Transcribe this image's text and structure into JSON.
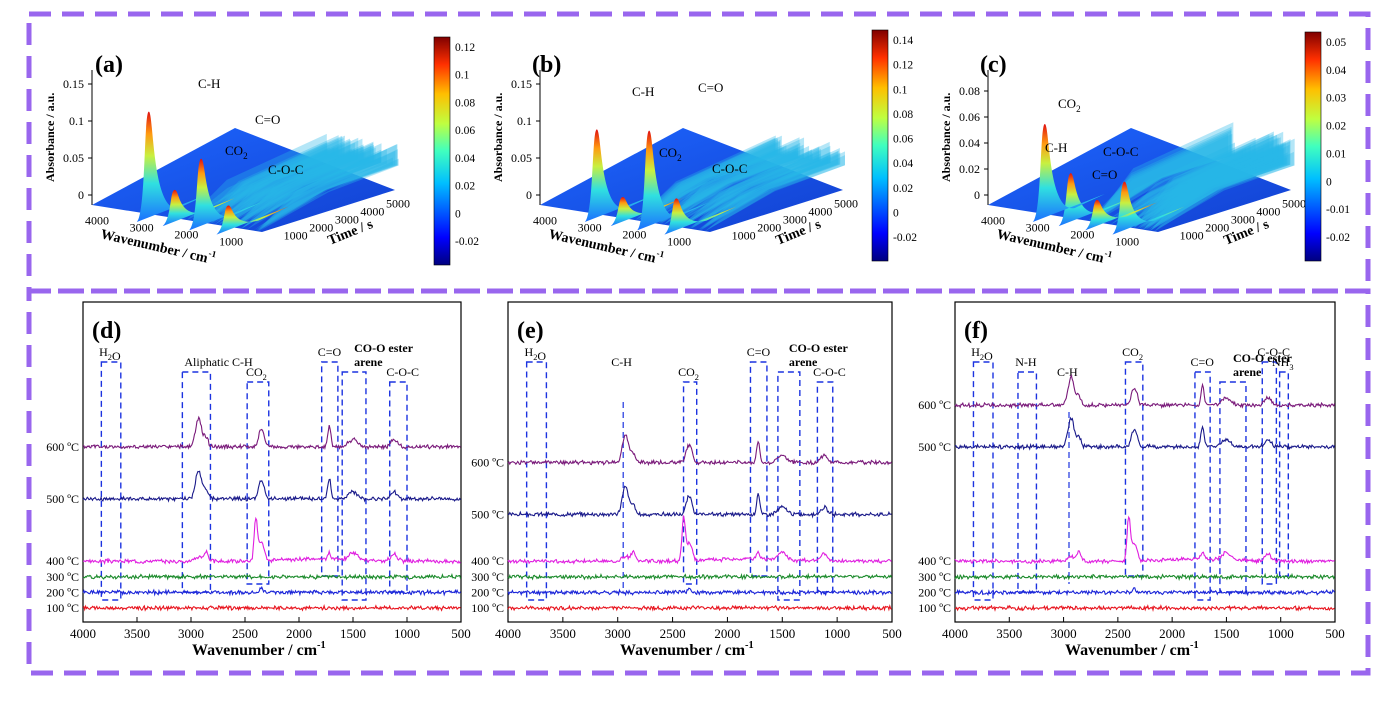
{
  "figure": {
    "frame_color": "#9966ee"
  },
  "chart_data": [
    {
      "panel": "(a)",
      "type": "surface3d",
      "xlabel": "Wavenumber / cm⁻¹",
      "ylabel": "Time / s",
      "zlabel": "Absorbance / a.u.",
      "x_ticks": [
        "4000",
        "3000",
        "2000",
        "1000"
      ],
      "t_ticks": [
        "1000",
        "2000",
        "3000",
        "4000",
        "5000"
      ],
      "z_ticks": [
        "0",
        "0.05",
        "0.1",
        "0.15"
      ],
      "colorbar_ticks": [
        "-0.02",
        "0",
        "0.02",
        "0.04",
        "0.06",
        "0.08",
        "0.1",
        "0.12"
      ],
      "peaks": [
        {
          "label": "C-H",
          "wavenumber": 2930,
          "height": 0.145
        },
        {
          "label": "CO₂",
          "wavenumber": 2350,
          "height": 0.04
        },
        {
          "label": "C=O",
          "wavenumber": 1760,
          "height": 0.09
        },
        {
          "label": "C-O-C",
          "wavenumber": 1150,
          "height": 0.03
        }
      ]
    },
    {
      "panel": "(b)",
      "type": "surface3d",
      "xlabel": "Wavenumber / cm⁻¹",
      "ylabel": "Time / s",
      "zlabel": "Absorbance / a.u.",
      "x_ticks": [
        "4000",
        "3000",
        "2000",
        "1000"
      ],
      "t_ticks": [
        "1000",
        "2000",
        "3000",
        "4000",
        "5000"
      ],
      "z_ticks": [
        "0",
        "0.05",
        "0.1",
        "0.15"
      ],
      "colorbar_ticks": [
        "-0.02",
        "0",
        "0.02",
        "0.04",
        "0.06",
        "0.08",
        "0.1",
        "0.12",
        "0.14"
      ],
      "peaks": [
        {
          "label": "C-H",
          "wavenumber": 2930,
          "height": 0.12
        },
        {
          "label": "CO₂",
          "wavenumber": 2350,
          "height": 0.03
        },
        {
          "label": "C=O",
          "wavenumber": 1760,
          "height": 0.13
        },
        {
          "label": "C-O-C",
          "wavenumber": 1150,
          "height": 0.04
        }
      ]
    },
    {
      "panel": "(c)",
      "type": "surface3d",
      "xlabel": "Wavenumber / cm⁻¹",
      "ylabel": "Time / s",
      "zlabel": "Absorbance / a.u.",
      "x_ticks": [
        "4000",
        "3000",
        "2000",
        "1000"
      ],
      "t_ticks": [
        "1000",
        "2000",
        "3000",
        "4000",
        "5000"
      ],
      "z_ticks": [
        "0",
        "0.02",
        "0.04",
        "0.06",
        "0.08"
      ],
      "colorbar_ticks": [
        "-0.02",
        "-0.01",
        "0",
        "0.01",
        "0.02",
        "0.03",
        "0.04",
        "0.05"
      ],
      "peaks": [
        {
          "label": "CO₂",
          "wavenumber": 2350,
          "height": 0.03
        },
        {
          "label": "C-H",
          "wavenumber": 2930,
          "height": 0.06
        },
        {
          "label": "C-O-C",
          "wavenumber": 1150,
          "height": 0.03
        },
        {
          "label": "C=O",
          "wavenumber": 1760,
          "height": 0.015
        }
      ]
    },
    {
      "panel": "(d)",
      "type": "line",
      "xlabel": "Wavenumber / cm⁻¹",
      "xlim": [
        4000,
        500
      ],
      "x_ticks": [
        "4000",
        "3500",
        "3000",
        "2500",
        "2000",
        "1500",
        "1000",
        "500"
      ],
      "series": [
        {
          "name": "100 ºC",
          "color": "#e8141e",
          "offset": 0.0
        },
        {
          "name": "200 ºC",
          "color": "#1a24d8",
          "offset": 0.06
        },
        {
          "name": "300 ºC",
          "color": "#1a8a2a",
          "offset": 0.12
        },
        {
          "name": "400 ºC",
          "color": "#e020e0",
          "offset": 0.18
        },
        {
          "name": "500 ºC",
          "color": "#1a1a8a",
          "offset": 0.42
        },
        {
          "name": "600 ºC",
          "color": "#7a1a7a",
          "offset": 0.62
        }
      ],
      "bands": [
        {
          "label": "H₂O",
          "from": 3830,
          "to": 3650
        },
        {
          "label": "Aliphatic C-H",
          "from": 3080,
          "to": 2820
        },
        {
          "label": "CO₂",
          "from": 2480,
          "to": 2280
        },
        {
          "label": "C=O",
          "from": 1790,
          "to": 1640
        },
        {
          "label": "CO-O ester\narene",
          "from": 1600,
          "to": 1380
        },
        {
          "label": "C-O-C",
          "from": 1160,
          "to": 1000
        }
      ]
    },
    {
      "panel": "(e)",
      "type": "line",
      "xlabel": "Wavenumber / cm⁻¹",
      "xlim": [
        4000,
        500
      ],
      "x_ticks": [
        "4000",
        "3500",
        "3000",
        "2500",
        "2000",
        "1500",
        "1000",
        "500"
      ],
      "series": [
        {
          "name": "100 ºC",
          "color": "#e8141e",
          "offset": 0.0
        },
        {
          "name": "200 ºC",
          "color": "#1a24d8",
          "offset": 0.06
        },
        {
          "name": "300 ºC",
          "color": "#1a8a2a",
          "offset": 0.12
        },
        {
          "name": "400 ºC",
          "color": "#e020e0",
          "offset": 0.18
        },
        {
          "name": "500 ºC",
          "color": "#1a1a8a",
          "offset": 0.36
        },
        {
          "name": "600 ºC",
          "color": "#7a1a7a",
          "offset": 0.56
        }
      ],
      "bands": [
        {
          "label": "H₂O",
          "from": 3830,
          "to": 3650
        },
        {
          "label": "C-H",
          "from": 2950,
          "to": 2950
        },
        {
          "label": "CO₂",
          "from": 2400,
          "to": 2280
        },
        {
          "label": "C=O",
          "from": 1790,
          "to": 1640
        },
        {
          "label": "CO-O ester\narene",
          "from": 1540,
          "to": 1340
        },
        {
          "label": "C-O-C",
          "from": 1180,
          "to": 1040
        }
      ]
    },
    {
      "panel": "(f)",
      "type": "line",
      "xlabel": "Wavenumber / cm⁻¹",
      "xlim": [
        4000,
        500
      ],
      "x_ticks": [
        "4000",
        "3500",
        "3000",
        "2500",
        "2000",
        "1500",
        "1000",
        "500"
      ],
      "series": [
        {
          "name": "100 ºC",
          "color": "#e8141e",
          "offset": 0.0
        },
        {
          "name": "200 ºC",
          "color": "#1a24d8",
          "offset": 0.06
        },
        {
          "name": "300 ºC",
          "color": "#1a8a2a",
          "offset": 0.12
        },
        {
          "name": "400 ºC",
          "color": "#e020e0",
          "offset": 0.18
        },
        {
          "name": "500 ºC",
          "color": "#1a1a8a",
          "offset": 0.62
        },
        {
          "name": "600 ºC",
          "color": "#7a1a7a",
          "offset": 0.78
        }
      ],
      "bands": [
        {
          "label": "H₂O",
          "from": 3830,
          "to": 3650
        },
        {
          "label": "N-H",
          "from": 3420,
          "to": 3250
        },
        {
          "label": "C-H",
          "from": 2950,
          "to": 2950
        },
        {
          "label": "CO₂",
          "from": 2430,
          "to": 2270
        },
        {
          "label": "C=O",
          "from": 1790,
          "to": 1650
        },
        {
          "label": "CO-O ester\narene",
          "from": 1560,
          "to": 1320
        },
        {
          "label": "C-O-C",
          "from": 1170,
          "to": 1040
        },
        {
          "label": "NH₃",
          "from": 1010,
          "to": 930
        }
      ]
    }
  ]
}
